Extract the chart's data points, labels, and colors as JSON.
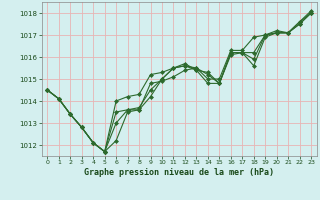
{
  "title": "",
  "xlabel": "Graphe pression niveau de la mer (hPa)",
  "ylabel": "",
  "bg_color": "#d4efef",
  "grid_color": "#e8b4b4",
  "line_color": "#2d6a2d",
  "marker_color": "#2d6a2d",
  "ylim": [
    1011.5,
    1018.5
  ],
  "xlim": [
    -0.5,
    23.5
  ],
  "yticks": [
    1012,
    1013,
    1014,
    1015,
    1016,
    1017,
    1018
  ],
  "xticks": [
    0,
    1,
    2,
    3,
    4,
    5,
    6,
    7,
    8,
    9,
    10,
    11,
    12,
    13,
    14,
    15,
    16,
    17,
    18,
    19,
    20,
    21,
    22,
    23
  ],
  "series": [
    [
      1014.5,
      1014.1,
      1013.4,
      1012.8,
      1012.1,
      1011.7,
      1012.2,
      1013.5,
      1013.6,
      1014.2,
      1015.0,
      1015.5,
      1015.6,
      1015.4,
      1014.8,
      1014.8,
      1016.1,
      1016.2,
      1015.6,
      1016.9,
      1017.1,
      1017.1,
      1017.5,
      1018.0
    ],
    [
      1014.5,
      1014.1,
      1013.4,
      1012.8,
      1012.1,
      1011.7,
      1013.5,
      1013.6,
      1013.6,
      1014.8,
      1014.9,
      1015.1,
      1015.4,
      1015.5,
      1015.2,
      1014.8,
      1016.2,
      1016.2,
      1016.2,
      1017.0,
      1017.1,
      1017.1,
      1017.6,
      1018.0
    ],
    [
      1014.5,
      1014.1,
      1013.4,
      1012.8,
      1012.1,
      1011.7,
      1013.0,
      1013.6,
      1013.7,
      1014.5,
      1015.0,
      1015.5,
      1015.7,
      1015.4,
      1015.3,
      1014.8,
      1016.2,
      1016.2,
      1015.9,
      1017.0,
      1017.1,
      1017.1,
      1017.5,
      1018.0
    ],
    [
      1014.5,
      1014.1,
      1013.4,
      1012.8,
      1012.1,
      1011.7,
      1014.0,
      1014.2,
      1014.3,
      1015.2,
      1015.3,
      1015.5,
      1015.6,
      1015.5,
      1015.0,
      1015.0,
      1016.3,
      1016.3,
      1016.9,
      1017.0,
      1017.2,
      1017.1,
      1017.6,
      1018.1
    ]
  ]
}
